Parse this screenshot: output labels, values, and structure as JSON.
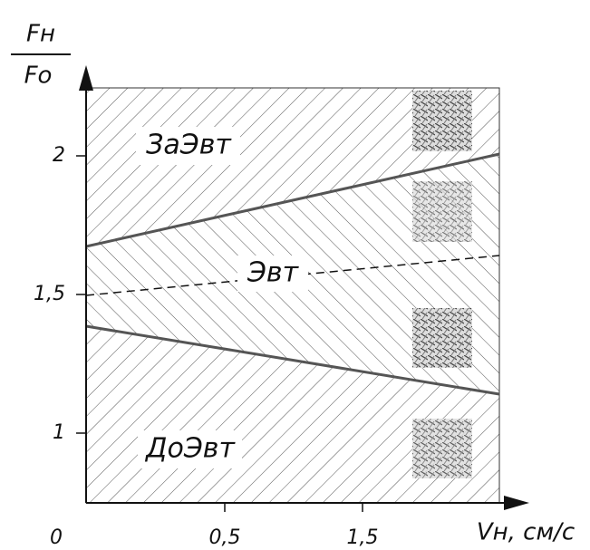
{
  "y_axis": {
    "label_top": "Fн",
    "label_bottom": "Fo",
    "ticks": [
      "2",
      "1,5",
      "1"
    ]
  },
  "x_axis": {
    "label": "Vн, см/с",
    "ticks": [
      "0",
      "0,5",
      "1,5"
    ]
  },
  "regions": [
    "ЗаЭвт",
    "Эвт",
    "ДоЭвт"
  ]
}
